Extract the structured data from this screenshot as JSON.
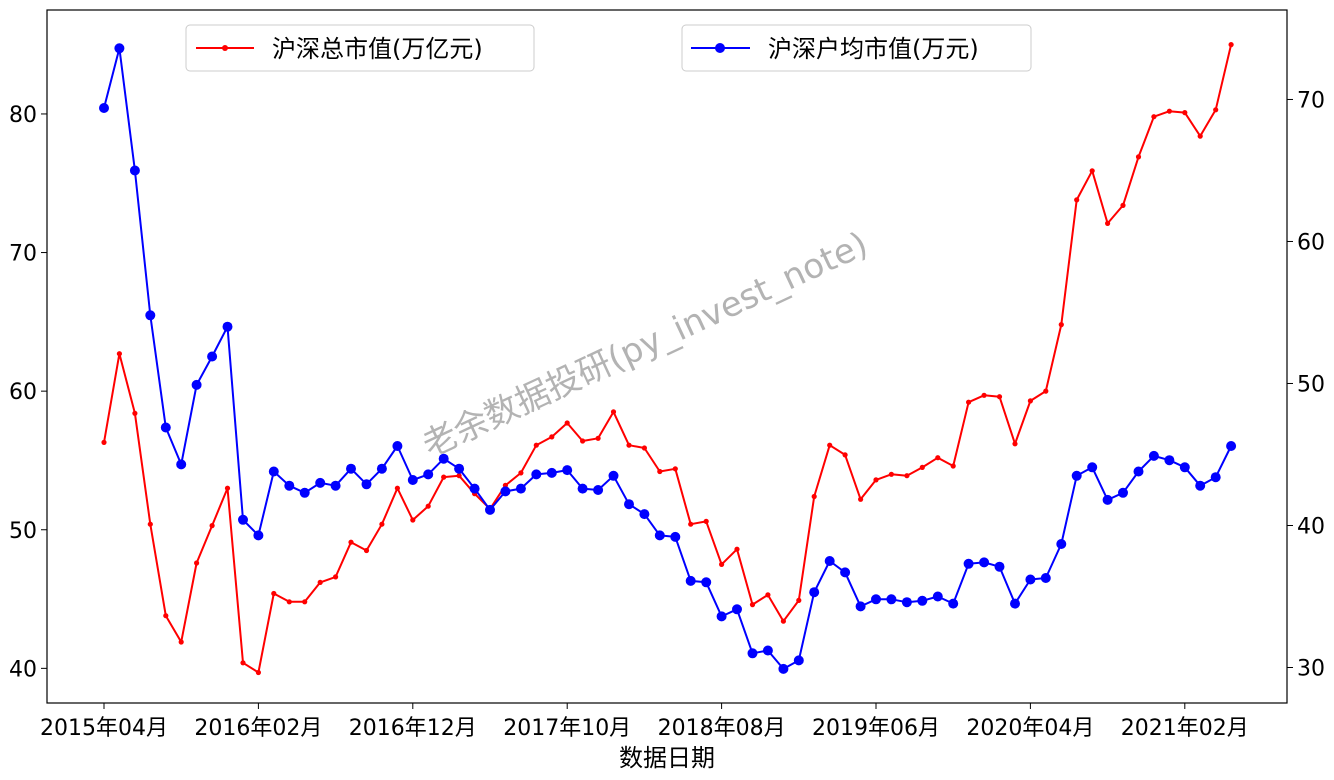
{
  "chart_data": {
    "type": "line",
    "xlabel": "数据日期",
    "x_tick_labels": [
      "2015年04月",
      "2016年02月",
      "2016年12月",
      "2017年10月",
      "2018年08月",
      "2019年06月",
      "2020年04月",
      "2021年02月"
    ],
    "x_start": "2015-04",
    "x_end": "2021-05",
    "left_axis": {
      "ylim": [
        37.5,
        87.5
      ],
      "ticks": [
        40,
        50,
        60,
        70,
        80
      ]
    },
    "right_axis": {
      "ylim": [
        27.5,
        76.3
      ],
      "ticks": [
        30,
        40,
        50,
        60,
        70
      ]
    },
    "grid": false,
    "watermark": "老余数据投研(py_invest_note)",
    "series": [
      {
        "name": "沪深总市值(万亿元)",
        "axis": "left",
        "color": "#ff0000",
        "marker": "small-dot",
        "legend_position": "top-left",
        "values": [
          56.3,
          62.7,
          58.4,
          50.4,
          43.8,
          41.9,
          47.6,
          50.3,
          53.0,
          40.4,
          39.7,
          45.4,
          44.8,
          44.8,
          46.2,
          46.6,
          49.1,
          48.5,
          50.4,
          53.0,
          50.7,
          51.7,
          53.8,
          53.9,
          52.6,
          51.5,
          53.2,
          54.1,
          56.1,
          56.7,
          57.7,
          56.4,
          56.6,
          58.5,
          56.1,
          55.9,
          54.2,
          54.4,
          50.4,
          50.6,
          47.5,
          48.6,
          44.6,
          45.3,
          43.4,
          44.9,
          52.4,
          56.1,
          55.4,
          52.2,
          53.6,
          54.0,
          53.9,
          54.5,
          55.2,
          54.6,
          59.2,
          59.7,
          59.6,
          56.2,
          59.3,
          60.0,
          64.8,
          73.8,
          75.9,
          72.1,
          73.4,
          76.9,
          79.8,
          80.2,
          80.1,
          78.4,
          80.3,
          85.0
        ]
      },
      {
        "name": "沪深户均市值(万元)",
        "axis": "right",
        "color": "#0000ff",
        "marker": "dot",
        "legend_position": "top-center",
        "values": [
          69.4,
          73.6,
          65.0,
          54.8,
          46.9,
          44.3,
          49.9,
          51.9,
          54.0,
          40.4,
          39.3,
          43.8,
          42.8,
          42.3,
          43.0,
          42.8,
          44.0,
          42.9,
          44.0,
          45.6,
          43.2,
          43.6,
          44.7,
          44.0,
          42.6,
          41.1,
          42.4,
          42.6,
          43.6,
          43.7,
          43.9,
          42.6,
          42.5,
          43.5,
          41.5,
          40.8,
          39.3,
          39.2,
          36.1,
          36.0,
          33.6,
          34.1,
          31.0,
          31.2,
          29.9,
          30.5,
          35.3,
          37.5,
          36.7,
          34.3,
          34.8,
          34.8,
          34.6,
          34.7,
          35.0,
          34.5,
          37.3,
          37.4,
          37.1,
          34.5,
          36.2,
          36.3,
          38.7,
          43.5,
          44.1,
          41.8,
          42.3,
          43.8,
          44.9,
          44.6,
          44.1,
          42.8,
          43.4,
          45.6
        ]
      }
    ]
  }
}
